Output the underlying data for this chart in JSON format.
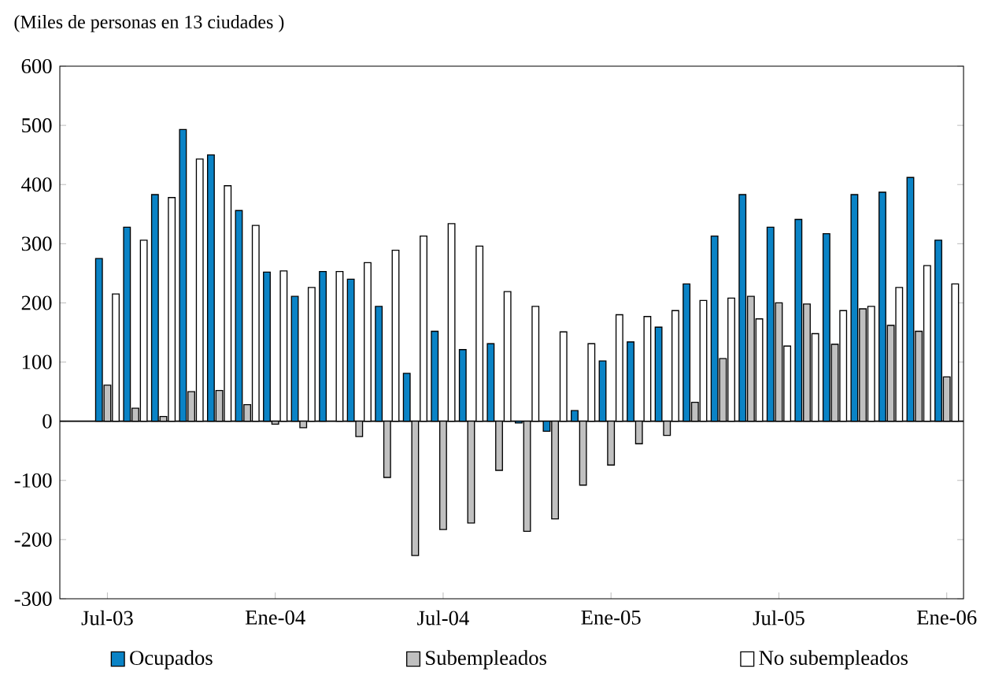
{
  "chart_data": {
    "type": "bar",
    "title": "(Miles de personas en 13 ciudades )",
    "categories": [
      "Jul-03",
      null,
      null,
      null,
      null,
      null,
      "Ene-04",
      null,
      null,
      null,
      null,
      null,
      "Jul-04",
      null,
      null,
      null,
      null,
      null,
      "Ene-05",
      null,
      null,
      null,
      null,
      null,
      "Jul-05",
      null,
      null,
      null,
      null,
      null,
      "Ene-06"
    ],
    "series": [
      {
        "name": "Ocupados",
        "color": "#0a83c6",
        "values": [
          275,
          328,
          383,
          493,
          450,
          356,
          252,
          211,
          253,
          240,
          194,
          81,
          152,
          121,
          131,
          -3,
          -17,
          18,
          102,
          134,
          159,
          232,
          313,
          383,
          328,
          341,
          317,
          383,
          387,
          412,
          306
        ]
      },
      {
        "name": "Subempleados",
        "color": "#c0c0c0",
        "values": [
          61,
          22,
          8,
          50,
          52,
          28,
          -5,
          -11,
          null,
          -26,
          -95,
          -227,
          -183,
          -172,
          -83,
          -186,
          -165,
          -108,
          -74,
          -38,
          -24,
          32,
          106,
          211,
          200,
          198,
          130,
          190,
          162,
          152,
          75
        ]
      },
      {
        "name": "No subempleados",
        "color": "#ffffff",
        "values": [
          215,
          306,
          378,
          443,
          398,
          331,
          254,
          226,
          253,
          268,
          289,
          313,
          334,
          296,
          219,
          194,
          151,
          131,
          180,
          177,
          187,
          204,
          208,
          173,
          127,
          148,
          187,
          194,
          226,
          263,
          232
        ]
      }
    ],
    "ylim": [
      -300,
      600
    ],
    "yticks": [
      -300,
      -200,
      -100,
      0,
      100,
      200,
      300,
      400,
      500,
      600
    ],
    "ref_lines": [
      {
        "axis": "y",
        "value": 0,
        "color": "#000000"
      }
    ],
    "grid": false,
    "legend": "bottom"
  }
}
